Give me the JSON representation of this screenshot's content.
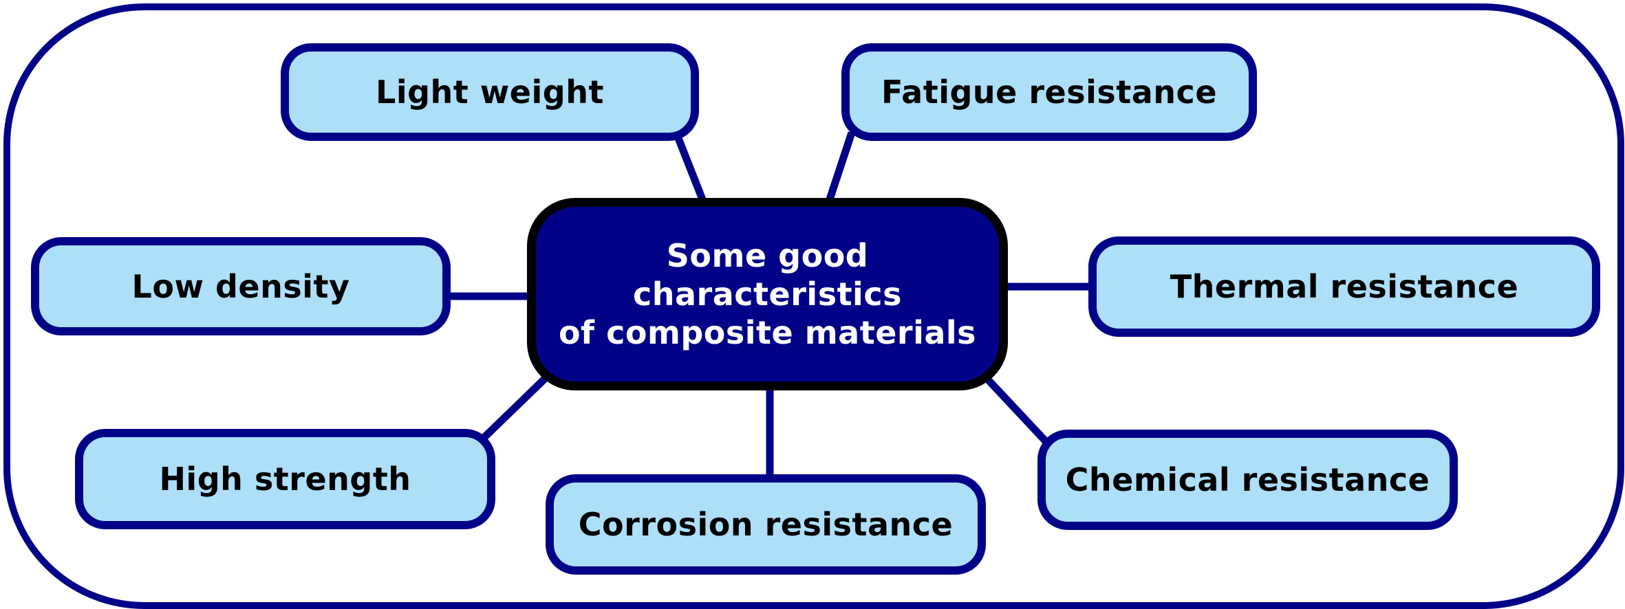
{
  "diagram": {
    "center": {
      "line1": "Some good characteristics",
      "line2": "of composite materials"
    },
    "nodes": {
      "light_weight": "Light weight",
      "fatigue_resistance": "Fatigue resistance",
      "low_density": "Low density",
      "thermal_resistance": "Thermal resistance",
      "high_strength": "High strength",
      "corrosion_resistance": "Corrosion resistance",
      "chemical_resistance": "Chemical resistance"
    }
  },
  "colors": {
    "navy": "#020288",
    "node_fill": "#addff9",
    "center_border": "#000000",
    "center_text": "#ffffff"
  }
}
